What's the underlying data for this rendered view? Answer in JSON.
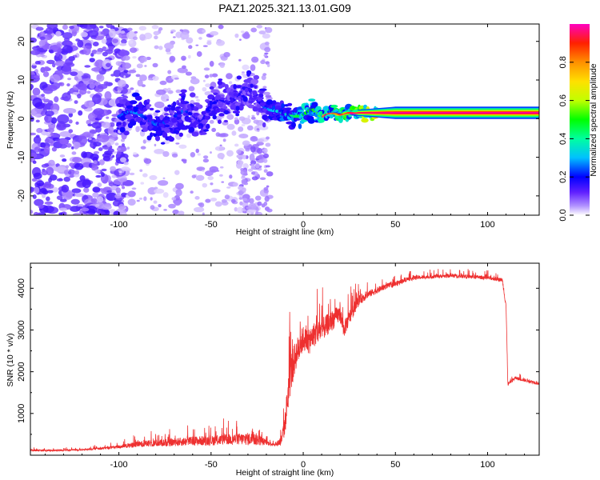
{
  "title": "PAZ1.2025.321.13.01.G09",
  "chart_data": [
    {
      "type": "heatmap",
      "panel": "top",
      "xlabel": "Height of straight line (km)",
      "ylabel": "Frequency (Hz)",
      "xlim": [
        -148,
        128
      ],
      "ylim": [
        -25,
        24.5
      ],
      "xticks": [
        -100,
        -50,
        0,
        50,
        100
      ],
      "yticks": [
        -20,
        -10,
        0,
        10,
        20
      ],
      "colorbar": {
        "label": "Normalized spectral amplitude",
        "range": [
          0,
          1
        ],
        "ticks": [
          0.0,
          0.2,
          0.4,
          0.6,
          0.8
        ],
        "tick_labels": [
          "0.0",
          "0.2",
          "0.4",
          "0.6",
          "0.8"
        ],
        "colormap": [
          "#ffffff",
          "#9060ff",
          "#4010ff",
          "#0000ff",
          "#00c0ff",
          "#00ffa0",
          "#00ff00",
          "#c0ff00",
          "#ffe000",
          "#ff9000",
          "#ff2000",
          "#ff0060",
          "#ff00c0"
        ]
      },
      "ridge": [
        {
          "x": -100,
          "f": 0.5,
          "a": 0.28
        },
        {
          "x": -95,
          "f": 1.8,
          "a": 0.3
        },
        {
          "x": -90,
          "f": 1.5,
          "a": 0.32
        },
        {
          "x": -85,
          "f": 0.0,
          "a": 0.25
        },
        {
          "x": -80,
          "f": -1.5,
          "a": 0.3
        },
        {
          "x": -75,
          "f": -1.0,
          "a": 0.28
        },
        {
          "x": -70,
          "f": 0.5,
          "a": 0.25
        },
        {
          "x": -65,
          "f": 2.0,
          "a": 0.3
        },
        {
          "x": -60,
          "f": 1.0,
          "a": 0.22
        },
        {
          "x": -55,
          "f": -1.0,
          "a": 0.2
        },
        {
          "x": -50,
          "f": 3.5,
          "a": 0.25
        },
        {
          "x": -45,
          "f": 5.0,
          "a": 0.22
        },
        {
          "x": -40,
          "f": 4.0,
          "a": 0.2
        },
        {
          "x": -35,
          "f": 6.0,
          "a": 0.22
        },
        {
          "x": -30,
          "f": 8.0,
          "a": 0.2
        },
        {
          "x": -25,
          "f": 5.0,
          "a": 0.18
        },
        {
          "x": -20,
          "f": 2.5,
          "a": 0.3
        },
        {
          "x": -15,
          "f": 2.0,
          "a": 0.35
        },
        {
          "x": -10,
          "f": 1.5,
          "a": 0.4
        },
        {
          "x": -5,
          "f": 0.5,
          "a": 0.45
        },
        {
          "x": 0,
          "f": 1.0,
          "a": 0.5
        },
        {
          "x": 5,
          "f": 2.5,
          "a": 0.5
        },
        {
          "x": 10,
          "f": 0.5,
          "a": 0.55
        },
        {
          "x": 15,
          "f": 1.5,
          "a": 0.6
        },
        {
          "x": 20,
          "f": 1.0,
          "a": 0.65
        },
        {
          "x": 25,
          "f": 1.5,
          "a": 0.7
        },
        {
          "x": 30,
          "f": 1.5,
          "a": 0.75
        },
        {
          "x": 40,
          "f": 1.5,
          "a": 0.9
        },
        {
          "x": 60,
          "f": 1.5,
          "a": 1.0
        },
        {
          "x": 80,
          "f": 1.5,
          "a": 1.0
        },
        {
          "x": 100,
          "f": 1.5,
          "a": 1.0
        },
        {
          "x": 128,
          "f": 1.5,
          "a": 1.0
        }
      ]
    },
    {
      "type": "line",
      "panel": "bottom",
      "xlabel": "Height of straight line (km)",
      "ylabel": "SNR (10 * v/v)",
      "xlim": [
        -148,
        128
      ],
      "ylim": [
        0,
        4600
      ],
      "xticks": [
        -100,
        -50,
        0,
        50,
        100
      ],
      "yticks": [
        1000,
        2000,
        3000,
        4000
      ],
      "color": "#ee3030",
      "series": [
        {
          "name": "SNR",
          "x": [
            -148,
            -140,
            -130,
            -120,
            -110,
            -100,
            -90,
            -80,
            -70,
            -60,
            -50,
            -40,
            -30,
            -25,
            -20,
            -15,
            -12,
            -10,
            -8,
            -6,
            -4,
            -2,
            0,
            3,
            6,
            10,
            15,
            20,
            22,
            25,
            30,
            35,
            40,
            45,
            50,
            55,
            60,
            70,
            80,
            90,
            100,
            108,
            110,
            111,
            115,
            120,
            125,
            128
          ],
          "y": [
            120,
            110,
            120,
            130,
            160,
            200,
            260,
            290,
            310,
            340,
            350,
            380,
            390,
            380,
            300,
            250,
            350,
            700,
            1600,
            2100,
            2400,
            2600,
            2800,
            2700,
            2900,
            3000,
            3200,
            3400,
            3000,
            3300,
            3700,
            3850,
            3950,
            4050,
            4100,
            4200,
            4250,
            4280,
            4300,
            4280,
            4250,
            4200,
            3600,
            1700,
            1850,
            1800,
            1750,
            1720
          ],
          "noise": [
            40,
            40,
            40,
            40,
            60,
            80,
            140,
            170,
            190,
            220,
            240,
            260,
            300,
            300,
            120,
            80,
            250,
            500,
            900,
            900,
            700,
            700,
            600,
            600,
            600,
            550,
            500,
            400,
            400,
            350,
            250,
            180,
            150,
            130,
            130,
            110,
            100,
            90,
            90,
            90,
            90,
            90,
            200,
            90,
            80,
            80,
            80,
            80
          ]
        }
      ]
    }
  ]
}
